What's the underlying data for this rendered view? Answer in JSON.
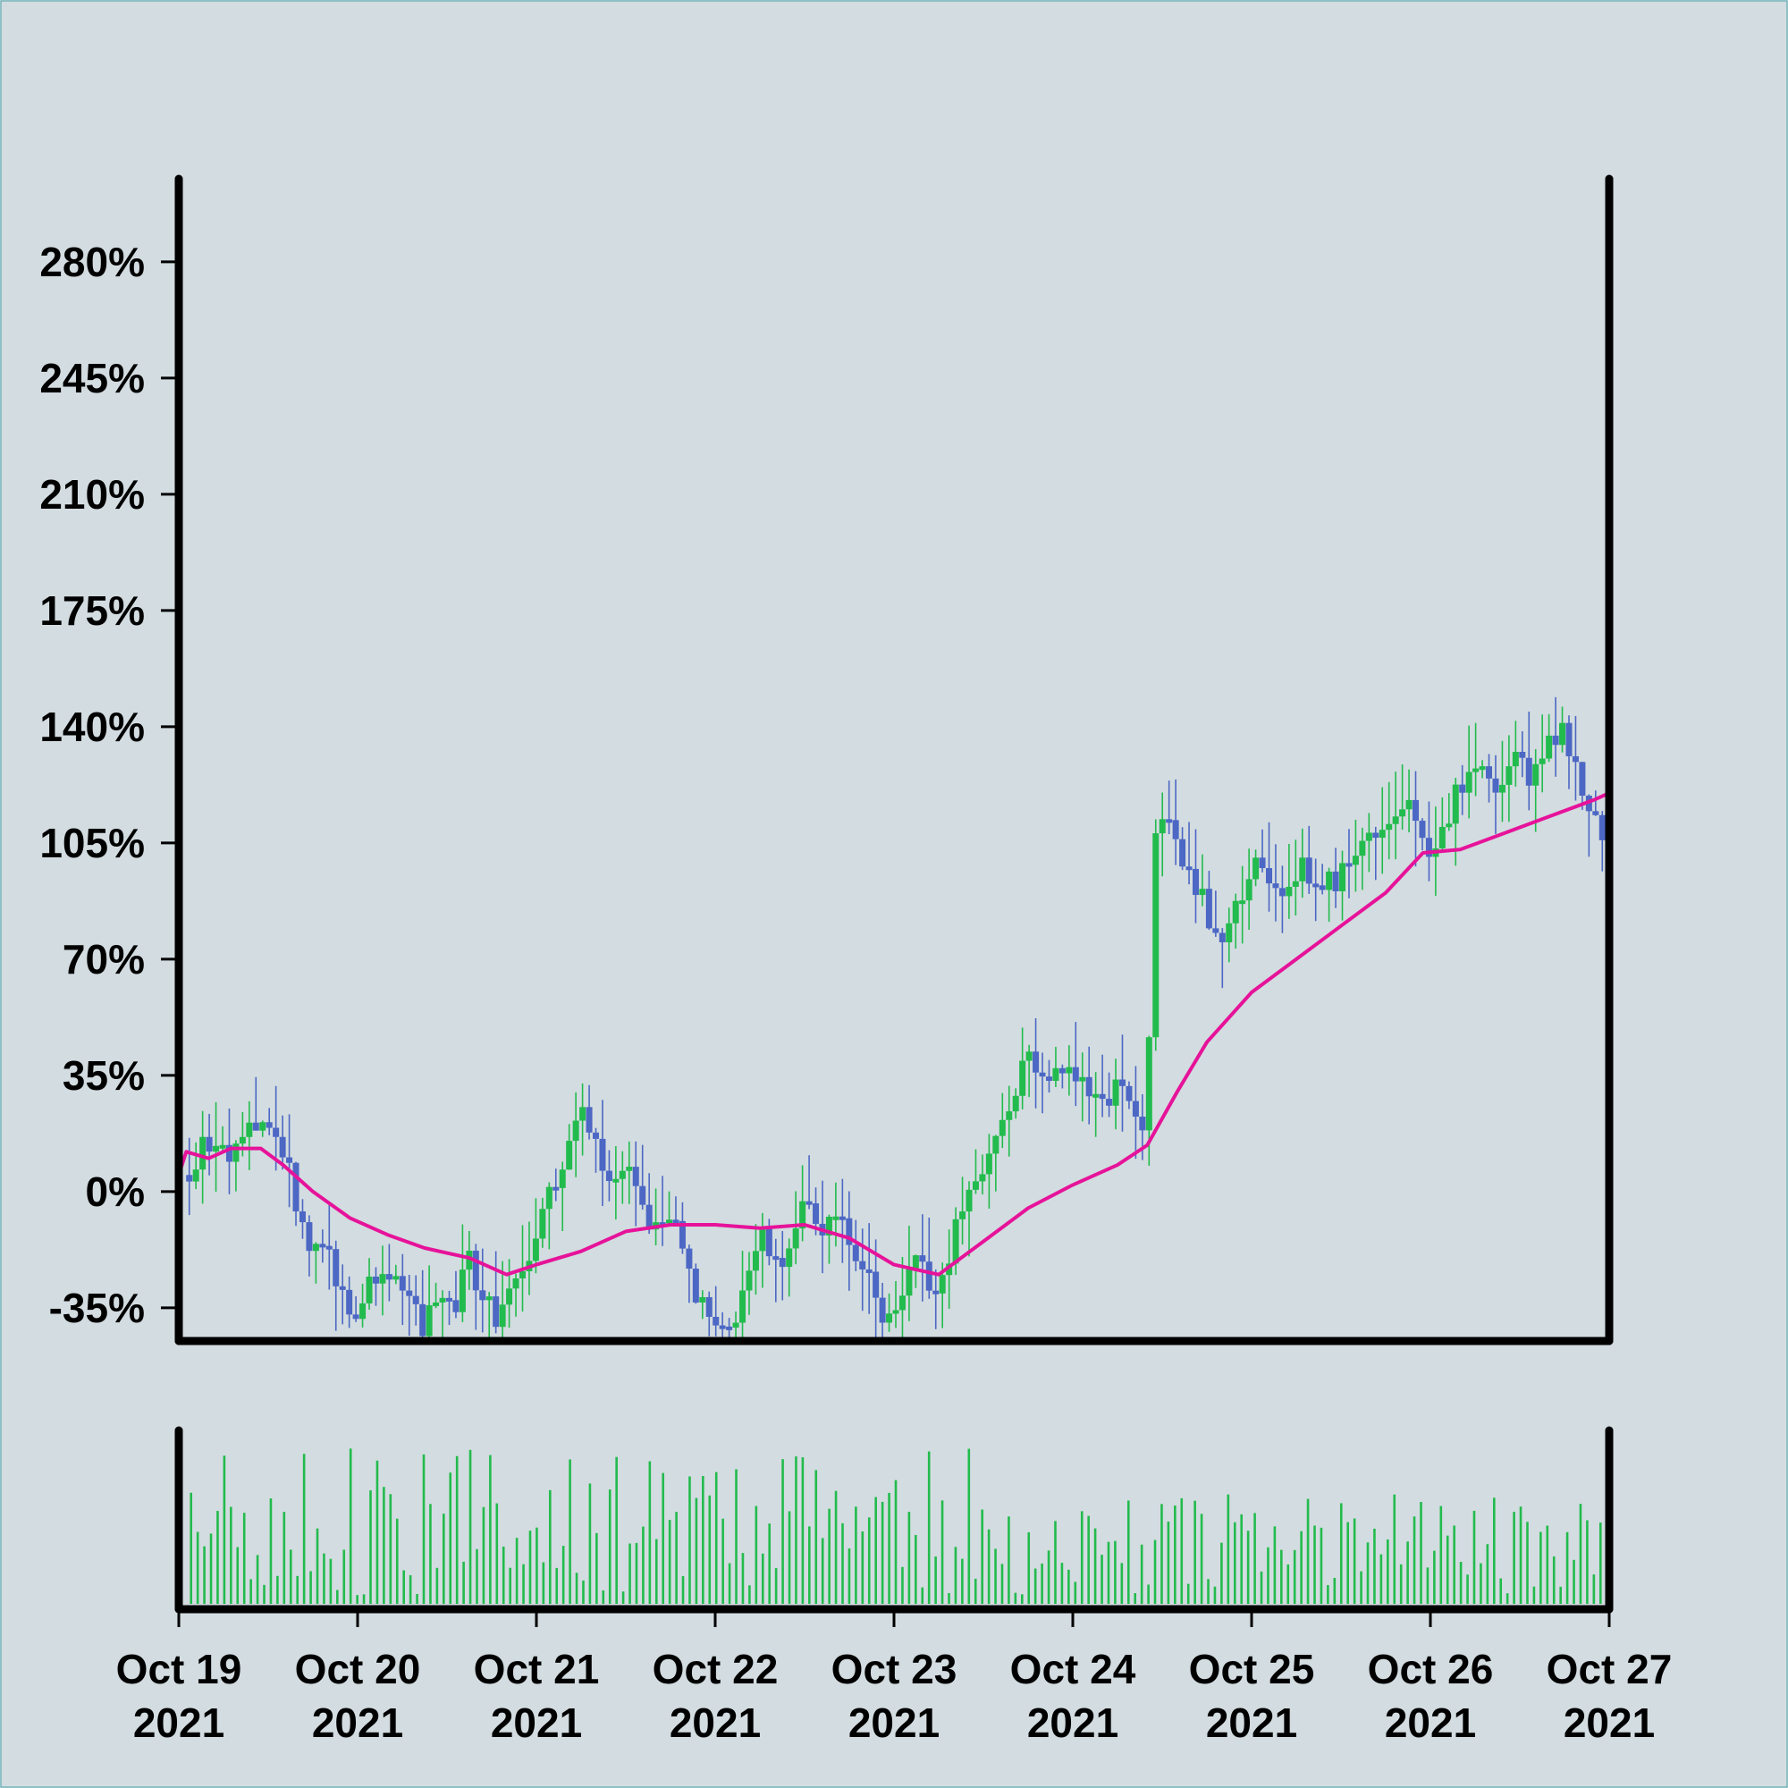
{
  "colors": {
    "background": "#d3dce0",
    "up": "#22bb4d",
    "down": "#4c67c4",
    "moving_average": "#e6139a",
    "volume": "#22bb4d",
    "axis": "#000000"
  },
  "chart_data": {
    "type": "candlestick",
    "title": "",
    "xlabel": "",
    "ylabel": "",
    "x_range": [
      "2021-10-19",
      "2021-10-27"
    ],
    "ylim": [
      -45,
      305
    ],
    "y_ticks": [
      -35,
      0,
      35,
      70,
      105,
      140,
      175,
      210,
      245,
      280
    ],
    "y_tick_labels": [
      "-35%",
      "0%",
      "35%",
      "70%",
      "105%",
      "140%",
      "175%",
      "210%",
      "245%",
      "280%"
    ],
    "x_ticks": [
      {
        "date": "2021-10-19",
        "line1": "Oct 19",
        "line2": "2021"
      },
      {
        "date": "2021-10-20",
        "line1": "Oct 20",
        "line2": "2021"
      },
      {
        "date": "2021-10-21",
        "line1": "Oct 21",
        "line2": "2021"
      },
      {
        "date": "2021-10-22",
        "line1": "Oct 22",
        "line2": "2021"
      },
      {
        "date": "2021-10-23",
        "line1": "Oct 23",
        "line2": "2021"
      },
      {
        "date": "2021-10-24",
        "line1": "Oct 24",
        "line2": "2021"
      },
      {
        "date": "2021-10-25",
        "line1": "Oct 25",
        "line2": "2021"
      },
      {
        "date": "2021-10-26",
        "line1": "Oct 26",
        "line2": "2021"
      },
      {
        "date": "2021-10-27",
        "line1": "Oct 27",
        "line2": "2021"
      }
    ],
    "price_series": [
      [
        "2021-10-19 00:00",
        5
      ],
      [
        "2021-10-19 03:00",
        15
      ],
      [
        "2021-10-19 06:00",
        8
      ],
      [
        "2021-10-19 09:00",
        22
      ],
      [
        "2021-10-19 12:00",
        15
      ],
      [
        "2021-10-19 14:00",
        5
      ],
      [
        "2021-10-19 16:00",
        -15
      ],
      [
        "2021-10-19 19:00",
        -15
      ],
      [
        "2021-10-19 21:00",
        -30
      ],
      [
        "2021-10-19 23:00",
        -40
      ],
      [
        "2021-10-20 01:00",
        -25
      ],
      [
        "2021-10-20 04:00",
        -25
      ],
      [
        "2021-10-20 06:00",
        -30
      ],
      [
        "2021-10-20 08:00",
        -40
      ],
      [
        "2021-10-20 10:00",
        -30
      ],
      [
        "2021-10-20 12:00",
        -38
      ],
      [
        "2021-10-20 14:00",
        -20
      ],
      [
        "2021-10-20 16:00",
        -30
      ],
      [
        "2021-10-20 18:00",
        -40
      ],
      [
        "2021-10-20 21:00",
        -25
      ],
      [
        "2021-10-21 00:00",
        -10
      ],
      [
        "2021-10-21 03:00",
        10
      ],
      [
        "2021-10-21 06:00",
        25
      ],
      [
        "2021-10-21 08:00",
        10
      ],
      [
        "2021-10-21 10:00",
        5
      ],
      [
        "2021-10-21 13:00",
        5
      ],
      [
        "2021-10-21 15:00",
        -15
      ],
      [
        "2021-10-21 17:00",
        -5
      ],
      [
        "2021-10-21 19:00",
        -15
      ],
      [
        "2021-10-21 21:00",
        -30
      ],
      [
        "2021-10-21 23:00",
        -40
      ],
      [
        "2021-10-22 02:00",
        -40
      ],
      [
        "2021-10-22 04:00",
        -25
      ],
      [
        "2021-10-22 06:00",
        -15
      ],
      [
        "2021-10-22 08:00",
        -25
      ],
      [
        "2021-10-22 10:00",
        -10
      ],
      [
        "2021-10-22 12:00",
        -5
      ],
      [
        "2021-10-22 14:00",
        -10
      ],
      [
        "2021-10-22 16:00",
        -5
      ],
      [
        "2021-10-22 18:00",
        -15
      ],
      [
        "2021-10-22 20:00",
        -25
      ],
      [
        "2021-10-22 22:00",
        -40
      ],
      [
        "2021-10-23 01:00",
        -30
      ],
      [
        "2021-10-23 03:00",
        -20
      ],
      [
        "2021-10-23 05:00",
        -35
      ],
      [
        "2021-10-23 07:00",
        -20
      ],
      [
        "2021-10-23 09:00",
        -5
      ],
      [
        "2021-10-23 12:00",
        10
      ],
      [
        "2021-10-23 15:00",
        25
      ],
      [
        "2021-10-23 18:00",
        40
      ],
      [
        "2021-10-23 20:00",
        30
      ],
      [
        "2021-10-23 23:00",
        40
      ],
      [
        "2021-10-24 01:00",
        35
      ],
      [
        "2021-10-24 04:00",
        25
      ],
      [
        "2021-10-24 06:00",
        35
      ],
      [
        "2021-10-24 08:00",
        25
      ],
      [
        "2021-10-24 10:00",
        20
      ],
      [
        "2021-10-24 11:00",
        110
      ],
      [
        "2021-10-24 13:00",
        115
      ],
      [
        "2021-10-24 15:00",
        100
      ],
      [
        "2021-10-24 18:00",
        85
      ],
      [
        "2021-10-24 20:00",
        75
      ],
      [
        "2021-10-24 22:00",
        85
      ],
      [
        "2021-10-25 00:00",
        95
      ],
      [
        "2021-10-25 02:00",
        100
      ],
      [
        "2021-10-25 04:00",
        85
      ],
      [
        "2021-10-25 07:00",
        100
      ],
      [
        "2021-10-25 09:00",
        90
      ],
      [
        "2021-10-25 12:00",
        95
      ],
      [
        "2021-10-25 14:00",
        100
      ],
      [
        "2021-10-25 17:00",
        110
      ],
      [
        "2021-10-25 19:00",
        115
      ],
      [
        "2021-10-25 21:00",
        120
      ],
      [
        "2021-10-25 23:00",
        110
      ],
      [
        "2021-10-26 01:00",
        100
      ],
      [
        "2021-10-26 03:00",
        115
      ],
      [
        "2021-10-26 05:00",
        125
      ],
      [
        "2021-10-26 08:00",
        125
      ],
      [
        "2021-10-26 10:00",
        120
      ],
      [
        "2021-10-26 12:00",
        130
      ],
      [
        "2021-10-26 14:00",
        125
      ],
      [
        "2021-10-26 16:00",
        135
      ],
      [
        "2021-10-26 18:00",
        140
      ],
      [
        "2021-10-26 20:00",
        130
      ],
      [
        "2021-10-26 21:00",
        120
      ],
      [
        "2021-10-26 23:00",
        110
      ],
      [
        "2021-10-27 00:00",
        100
      ]
    ],
    "moving_average_series": [
      [
        "2021-10-19 00:00",
        5
      ],
      [
        "2021-10-19 01:00",
        12
      ],
      [
        "2021-10-19 04:00",
        10
      ],
      [
        "2021-10-19 07:00",
        13
      ],
      [
        "2021-10-19 11:00",
        13
      ],
      [
        "2021-10-19 14:00",
        8
      ],
      [
        "2021-10-19 18:00",
        0
      ],
      [
        "2021-10-19 23:00",
        -8
      ],
      [
        "2021-10-20 04:00",
        -13
      ],
      [
        "2021-10-20 09:00",
        -17
      ],
      [
        "2021-10-20 15:00",
        -20
      ],
      [
        "2021-10-20 20:00",
        -25
      ],
      [
        "2021-10-21 00:00",
        -22
      ],
      [
        "2021-10-21 06:00",
        -18
      ],
      [
        "2021-10-21 12:00",
        -12
      ],
      [
        "2021-10-21 18:00",
        -10
      ],
      [
        "2021-10-22 00:00",
        -10
      ],
      [
        "2021-10-22 06:00",
        -11
      ],
      [
        "2021-10-22 12:00",
        -10
      ],
      [
        "2021-10-22 18:00",
        -14
      ],
      [
        "2021-10-23 00:00",
        -22
      ],
      [
        "2021-10-23 06:00",
        -25
      ],
      [
        "2021-10-23 12:00",
        -15
      ],
      [
        "2021-10-23 18:00",
        -5
      ],
      [
        "2021-10-24 00:00",
        2
      ],
      [
        "2021-10-24 06:00",
        8
      ],
      [
        "2021-10-24 10:00",
        14
      ],
      [
        "2021-10-24 14:00",
        30
      ],
      [
        "2021-10-24 18:00",
        45
      ],
      [
        "2021-10-25 00:00",
        60
      ],
      [
        "2021-10-25 06:00",
        70
      ],
      [
        "2021-10-25 12:00",
        80
      ],
      [
        "2021-10-25 18:00",
        90
      ],
      [
        "2021-10-25 23:00",
        102
      ],
      [
        "2021-10-26 04:00",
        103
      ],
      [
        "2021-10-26 10:00",
        108
      ],
      [
        "2021-10-26 16:00",
        113
      ],
      [
        "2021-10-26 22:00",
        118
      ],
      [
        "2021-10-27 00:00",
        120
      ]
    ],
    "volume": {
      "bar_count": 213,
      "relative_range": [
        0.05,
        0.95
      ]
    }
  }
}
